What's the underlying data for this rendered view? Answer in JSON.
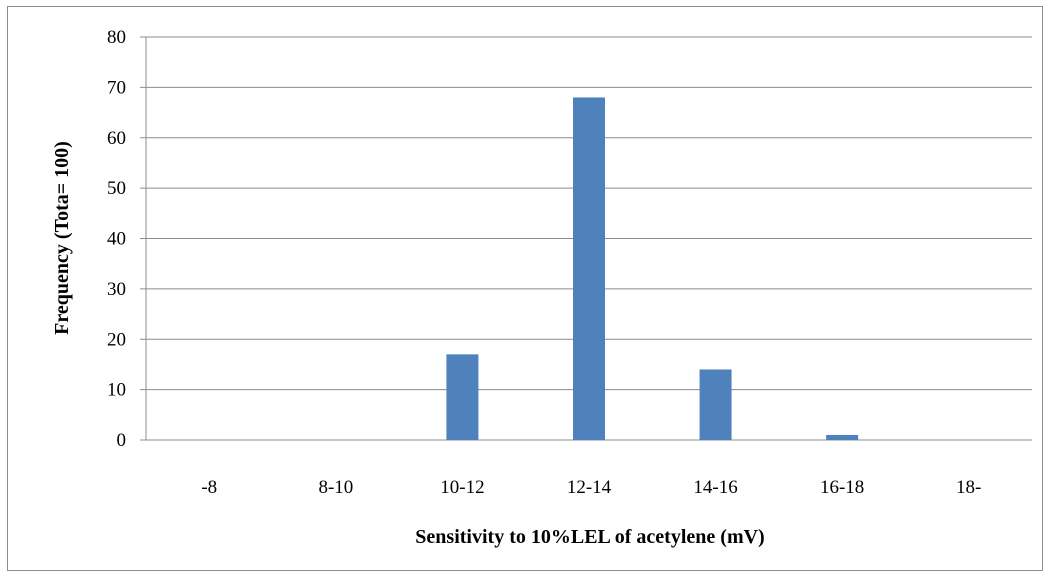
{
  "chart_data": {
    "type": "bar",
    "title": "",
    "xlabel": "Sensitivity to 10%LEL of acetylene (mV)",
    "ylabel": "Frequency (Tota= 100)",
    "categories": [
      "-8",
      "8-10",
      "10-12",
      "12-14",
      "14-16",
      "16-18",
      "18-"
    ],
    "series": [
      {
        "values": [
          0,
          0,
          17,
          68,
          14,
          1,
          0
        ]
      }
    ],
    "ylim": [
      0,
      80
    ],
    "yticks": [
      0,
      10,
      20,
      30,
      40,
      50,
      60,
      70,
      80
    ],
    "grid": true,
    "legend": "none",
    "bar_color": "#4f81bd",
    "grid_color": "#8c8c8c"
  }
}
